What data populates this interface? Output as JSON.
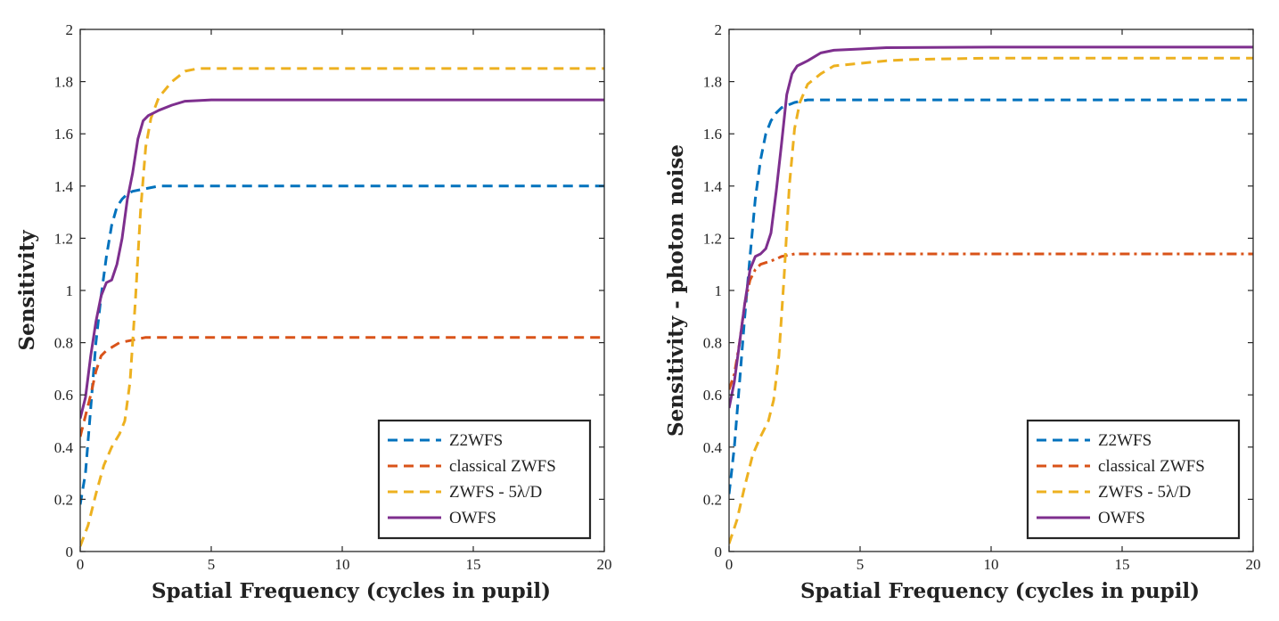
{
  "chart_data": [
    {
      "type": "line",
      "title": "",
      "xlabel": "Spatial Frequency (cycles in pupil)",
      "ylabel": "Sensitivity",
      "xlim": [
        0,
        20
      ],
      "ylim": [
        0,
        2
      ],
      "xticks": [
        0,
        5,
        10,
        15,
        20
      ],
      "yticks": [
        0,
        0.2,
        0.4,
        0.6,
        0.8,
        1,
        1.2,
        1.4,
        1.6,
        1.8,
        2
      ],
      "xtick_labels": [
        "0",
        "5",
        "10",
        "15",
        "20"
      ],
      "ytick_labels": [
        "0",
        "0.2",
        "0.4",
        "0.6",
        "0.8",
        "1",
        "1.2",
        "1.4",
        "1.6",
        "1.8",
        "2"
      ],
      "legend_position": "bottom-right",
      "series": [
        {
          "name": "Z2WFS",
          "color": "#0072BD",
          "style": "dashed",
          "x": [
            0,
            0.2,
            0.4,
            0.6,
            0.8,
            1.0,
            1.2,
            1.4,
            1.6,
            1.8,
            2.0,
            2.5,
            3,
            5,
            10,
            20
          ],
          "y": [
            0.18,
            0.3,
            0.55,
            0.8,
            0.98,
            1.13,
            1.25,
            1.32,
            1.35,
            1.37,
            1.38,
            1.39,
            1.4,
            1.4,
            1.4,
            1.4
          ]
        },
        {
          "name": "classical ZWFS",
          "color": "#D95319",
          "style": "dashed",
          "x": [
            0,
            0.2,
            0.4,
            0.6,
            0.8,
            1.0,
            1.5,
            2.0,
            2.5,
            3,
            5,
            10,
            20
          ],
          "y": [
            0.44,
            0.52,
            0.6,
            0.69,
            0.75,
            0.77,
            0.8,
            0.81,
            0.82,
            0.82,
            0.82,
            0.82,
            0.82
          ]
        },
        {
          "name": "ZWFS - 5λ/D",
          "color": "#EDB120",
          "style": "dashed",
          "x": [
            0,
            0.3,
            0.6,
            0.9,
            1.2,
            1.5,
            1.7,
            1.9,
            2.1,
            2.3,
            2.5,
            2.7,
            3.0,
            3.5,
            4.0,
            4.5,
            5,
            10,
            20
          ],
          "y": [
            0.02,
            0.1,
            0.22,
            0.33,
            0.4,
            0.45,
            0.5,
            0.65,
            0.95,
            1.3,
            1.55,
            1.66,
            1.74,
            1.8,
            1.84,
            1.85,
            1.85,
            1.85,
            1.85
          ]
        },
        {
          "name": "OWFS",
          "color": "#7E2F8E",
          "style": "solid",
          "x": [
            0,
            0.2,
            0.4,
            0.6,
            0.8,
            1.0,
            1.2,
            1.4,
            1.6,
            1.8,
            2.0,
            2.2,
            2.4,
            2.6,
            2.8,
            3.0,
            3.5,
            4.0,
            5,
            10,
            20
          ],
          "y": [
            0.51,
            0.59,
            0.75,
            0.88,
            0.98,
            1.03,
            1.04,
            1.1,
            1.2,
            1.35,
            1.45,
            1.58,
            1.65,
            1.67,
            1.68,
            1.69,
            1.71,
            1.725,
            1.73,
            1.73,
            1.73
          ]
        }
      ]
    },
    {
      "type": "line",
      "title": "",
      "xlabel": "Spatial Frequency (cycles in pupil)",
      "ylabel": "Sensitivity - photon noise",
      "xlim": [
        0,
        20
      ],
      "ylim": [
        0,
        2
      ],
      "xticks": [
        0,
        5,
        10,
        15,
        20
      ],
      "yticks": [
        0,
        0.2,
        0.4,
        0.6,
        0.8,
        1,
        1.2,
        1.4,
        1.6,
        1.8,
        2
      ],
      "xtick_labels": [
        "0",
        "5",
        "10",
        "15",
        "20"
      ],
      "ytick_labels": [
        "0",
        "0.2",
        "0.4",
        "0.6",
        "0.8",
        "1",
        "1.2",
        "1.4",
        "1.6",
        "1.8",
        "2"
      ],
      "legend_position": "bottom-right",
      "series": [
        {
          "name": "Z2WFS",
          "color": "#0072BD",
          "style": "dashed",
          "x": [
            0,
            0.2,
            0.4,
            0.6,
            0.8,
            1.0,
            1.2,
            1.4,
            1.6,
            1.8,
            2.0,
            2.5,
            3,
            5,
            10,
            20
          ],
          "y": [
            0.22,
            0.4,
            0.65,
            0.9,
            1.13,
            1.35,
            1.5,
            1.6,
            1.65,
            1.68,
            1.7,
            1.72,
            1.73,
            1.73,
            1.73,
            1.73
          ]
        },
        {
          "name": "classical ZWFS",
          "color": "#D95319",
          "style": "dashdot",
          "x": [
            0,
            0.2,
            0.4,
            0.6,
            0.8,
            1.0,
            1.2,
            1.5,
            1.8,
            2.0,
            2.5,
            3,
            5,
            10,
            20
          ],
          "y": [
            0.62,
            0.68,
            0.8,
            0.95,
            1.04,
            1.08,
            1.1,
            1.11,
            1.12,
            1.13,
            1.14,
            1.14,
            1.14,
            1.14,
            1.14
          ]
        },
        {
          "name": "ZWFS - 5λ/D",
          "color": "#EDB120",
          "style": "dashed",
          "x": [
            0,
            0.3,
            0.6,
            0.9,
            1.2,
            1.5,
            1.7,
            1.9,
            2.1,
            2.3,
            2.5,
            2.7,
            3.0,
            3.5,
            4.0,
            5,
            6,
            7,
            10,
            20
          ],
          "y": [
            0.03,
            0.12,
            0.25,
            0.37,
            0.44,
            0.5,
            0.58,
            0.75,
            1.05,
            1.4,
            1.62,
            1.72,
            1.79,
            1.83,
            1.86,
            1.87,
            1.88,
            1.885,
            1.89,
            1.89
          ]
        },
        {
          "name": "OWFS",
          "color": "#7E2F8E",
          "style": "solid",
          "x": [
            0,
            0.2,
            0.4,
            0.6,
            0.8,
            1.0,
            1.2,
            1.4,
            1.6,
            1.8,
            2.0,
            2.2,
            2.4,
            2.6,
            2.8,
            3.0,
            3.5,
            4.0,
            5,
            6,
            10,
            20
          ],
          "y": [
            0.55,
            0.65,
            0.8,
            0.95,
            1.08,
            1.13,
            1.14,
            1.16,
            1.22,
            1.38,
            1.56,
            1.75,
            1.83,
            1.86,
            1.87,
            1.88,
            1.91,
            1.92,
            1.925,
            1.93,
            1.932,
            1.932
          ]
        }
      ]
    }
  ]
}
